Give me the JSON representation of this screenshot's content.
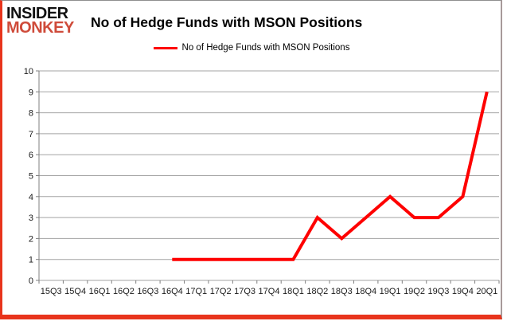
{
  "branding": {
    "logo_line1": "INSIDER",
    "logo_line2": "MONKEY",
    "logo_color_top": "#111111",
    "logo_color_bottom": "#cf4b3a"
  },
  "header": {
    "title": "No of Hedge Funds with MSON Positions"
  },
  "legend": {
    "label": "No of Hedge Funds with MSON Positions",
    "marker_color": "#fe0000"
  },
  "chart_data": {
    "type": "line",
    "title": "No of Hedge Funds with MSON Positions",
    "xlabel": "",
    "ylabel": "",
    "categories": [
      "15Q3",
      "15Q4",
      "16Q1",
      "16Q2",
      "16Q3",
      "16Q4",
      "17Q1",
      "17Q2",
      "17Q3",
      "17Q4",
      "18Q1",
      "18Q2",
      "18Q3",
      "18Q4",
      "19Q1",
      "19Q2",
      "19Q3",
      "19Q4",
      "20Q1"
    ],
    "series": [
      {
        "name": "No of Hedge Funds with MSON Positions",
        "color": "#fe0000",
        "values": [
          null,
          null,
          null,
          null,
          null,
          1,
          1,
          1,
          1,
          1,
          1,
          3,
          2,
          3,
          4,
          3,
          3,
          4,
          9
        ]
      }
    ],
    "ylim": [
      0,
      10
    ],
    "ytick_step": 1,
    "grid": "horizontal",
    "legend_position": "top-center"
  },
  "colors": {
    "gridline": "#a3a3a3",
    "axis": "#7f7f7f",
    "tick_label": "#1a1a1a",
    "border_red": "#e8341c",
    "border_gray": "#8f8f8f"
  }
}
